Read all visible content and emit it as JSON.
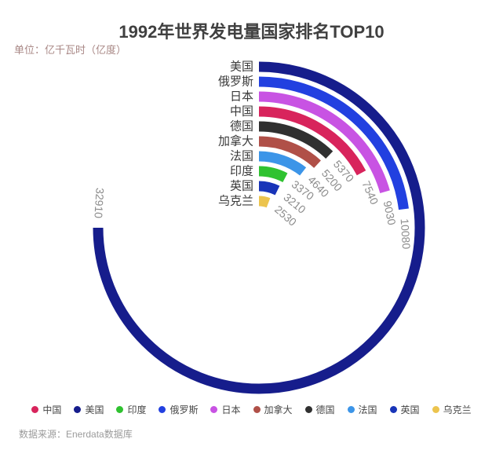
{
  "title": "1992年世界发电量国家排名TOP10",
  "subtitle": "单位：亿千瓦时（亿度）",
  "source": "数据来源：Enerdata数据库",
  "chart_data": {
    "type": "bar",
    "variant": "radial-bar",
    "title": "1992年世界发电量国家排名TOP10",
    "unit": "亿千瓦时（亿度）",
    "categories": [
      "美国",
      "俄罗斯",
      "日本",
      "中国",
      "德国",
      "加拿大",
      "法国",
      "印度",
      "英国",
      "乌克兰"
    ],
    "values": [
      32910,
      10080,
      9030,
      7540,
      5370,
      5200,
      4640,
      3370,
      3210,
      2530
    ],
    "colors": {
      "中国": "#d8245c",
      "美国": "#161d8c",
      "印度": "#2fc230",
      "俄罗斯": "#2240e0",
      "日本": "#c853e3",
      "加拿大": "#b05048",
      "德国": "#303030",
      "法国": "#3c95e8",
      "英国": "#1834b8",
      "乌克兰": "#ecc44e"
    },
    "legend": [
      "中国",
      "美国",
      "印度",
      "俄罗斯",
      "日本",
      "加拿大",
      "德国",
      "法国",
      "英国",
      "乌克兰"
    ],
    "legend_position": "bottom",
    "start_angle_deg": 90,
    "direction": "clockwise",
    "max_sweep_deg": 270,
    "label_color": "#8c8c8c",
    "category_label_color": "#3a3a3a"
  }
}
